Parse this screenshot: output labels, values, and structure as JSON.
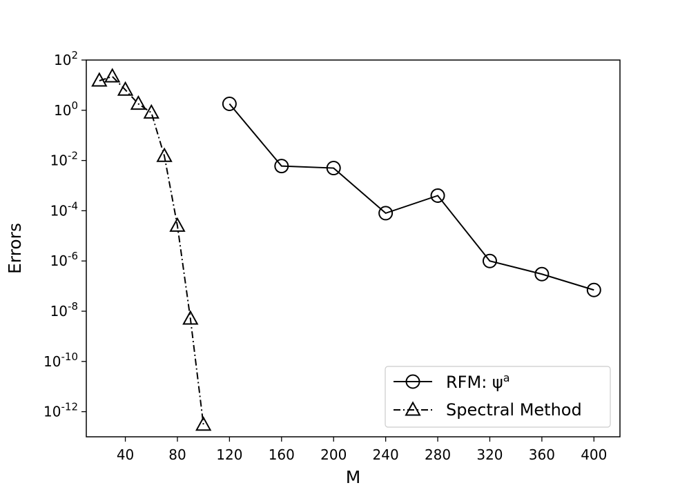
{
  "chart_data": {
    "type": "line",
    "xlabel": "M",
    "ylabel": "Errors",
    "x_scale": "linear",
    "y_scale": "log",
    "xlim": [
      10,
      420
    ],
    "ylim_log10": [
      -13,
      2
    ],
    "x_ticks": [
      40,
      80,
      120,
      160,
      200,
      240,
      280,
      320,
      360,
      400
    ],
    "x_tick_labels": [
      "40",
      "80",
      "120",
      "160",
      "200",
      "240",
      "280",
      "320",
      "360",
      "400"
    ],
    "y_tick_exponents": [
      2,
      0,
      -2,
      -4,
      -6,
      -8,
      -10,
      -12
    ],
    "y_tick_labels": [
      "10^2",
      "10^0",
      "10^-2",
      "10^-4",
      "10^-6",
      "10^-8",
      "10^-10",
      "10^-12"
    ],
    "grid": false,
    "legend_position": "bottom-right",
    "series": [
      {
        "name": "RFM: ψ^a",
        "legend_base": "RFM: ψ",
        "legend_sup": "a",
        "marker": "circle",
        "line_style": "solid",
        "color": "#000000",
        "x": [
          120,
          160,
          200,
          240,
          280,
          320,
          360,
          400
        ],
        "y": [
          1.8,
          0.006,
          0.005,
          8e-05,
          0.0004,
          1e-06,
          3e-07,
          7e-08
        ]
      },
      {
        "name": "Spectral Method",
        "marker": "triangle",
        "line_style": "dashdot",
        "color": "#000000",
        "x": [
          20,
          30,
          40,
          50,
          60,
          70,
          80,
          90,
          100
        ],
        "y": [
          15,
          22,
          6.5,
          1.8,
          0.8,
          0.015,
          2.5e-05,
          5e-09,
          3e-13
        ]
      }
    ]
  }
}
